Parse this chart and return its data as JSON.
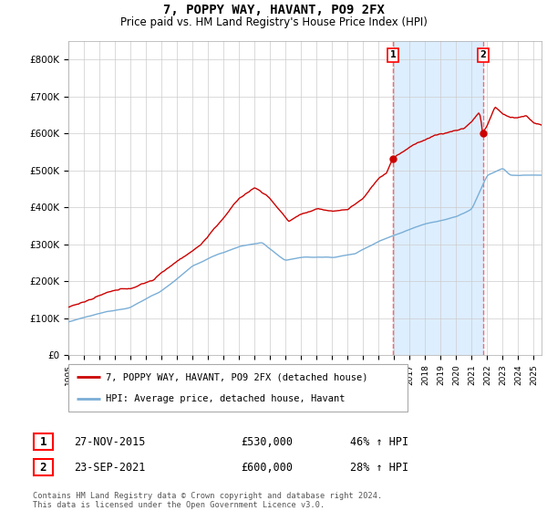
{
  "title": "7, POPPY WAY, HAVANT, PO9 2FX",
  "subtitle": "Price paid vs. HM Land Registry's House Price Index (HPI)",
  "xlim_start": 1995.0,
  "xlim_end": 2025.5,
  "ylim": [
    0,
    850000
  ],
  "yticks": [
    0,
    100000,
    200000,
    300000,
    400000,
    500000,
    600000,
    700000,
    800000
  ],
  "ytick_labels": [
    "£0",
    "£100K",
    "£200K",
    "£300K",
    "£400K",
    "£500K",
    "£600K",
    "£700K",
    "£800K"
  ],
  "sale1_date": 2015.91,
  "sale1_price": 530000,
  "sale2_date": 2021.73,
  "sale2_price": 600000,
  "red_color": "#cc0000",
  "blue_color": "#7aaed6",
  "shade_color": "#ddeeff",
  "vline_color": "#ff6666",
  "legend_label_red": "7, POPPY WAY, HAVANT, PO9 2FX (detached house)",
  "legend_label_blue": "HPI: Average price, detached house, Havant",
  "footer": "Contains HM Land Registry data © Crown copyright and database right 2024.\nThis data is licensed under the Open Government Licence v3.0.",
  "table_row1": [
    "1",
    "27-NOV-2015",
    "£530,000",
    "46% ↑ HPI"
  ],
  "table_row2": [
    "2",
    "23-SEP-2021",
    "£600,000",
    "28% ↑ HPI"
  ]
}
